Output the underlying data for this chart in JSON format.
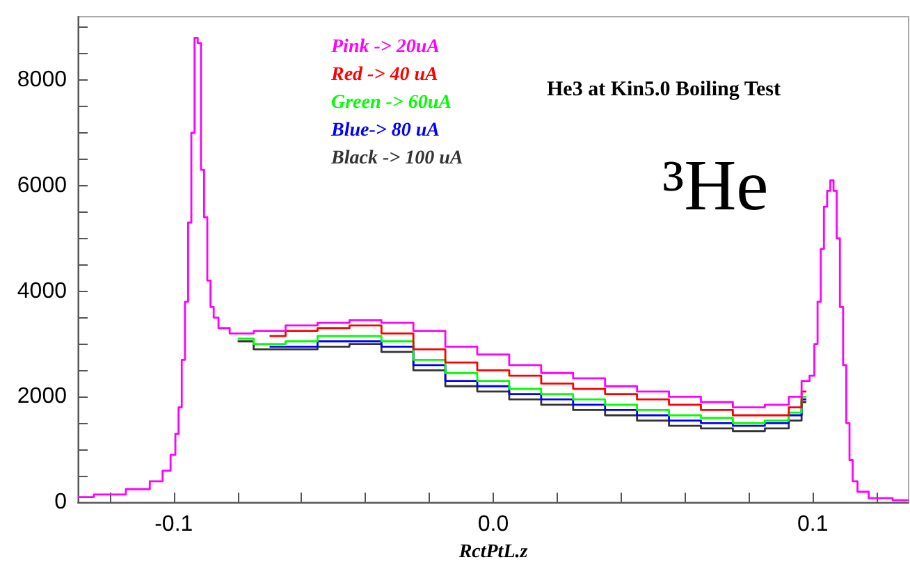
{
  "chart_data": {
    "type": "step",
    "title": "He3 at Kin5.0 Boiling Test",
    "xlabel": "RctPtL.z",
    "annotations": [
      "³He"
    ],
    "x": [
      -0.13,
      -0.12,
      -0.11,
      -0.105,
      -0.102,
      -0.1,
      -0.099,
      -0.098,
      -0.097,
      -0.096,
      -0.095,
      -0.094,
      -0.093,
      -0.092,
      -0.091,
      -0.09,
      -0.089,
      -0.088,
      -0.087,
      -0.085,
      -0.08,
      -0.07,
      -0.06,
      -0.05,
      -0.04,
      -0.03,
      -0.02,
      -0.01,
      0,
      0.01,
      0.02,
      0.03,
      0.04,
      0.05,
      0.06,
      0.07,
      0.08,
      0.09,
      0.095,
      0.098,
      0.1,
      0.101,
      0.102,
      0.103,
      0.104,
      0.105,
      0.106,
      0.107,
      0.108,
      0.109,
      0.11,
      0.111,
      0.112,
      0.113,
      0.115,
      0.12,
      0.13
    ],
    "series": [
      {
        "name": "Black -> 100 uA",
        "color": "#333333",
        "x": [
          -0.08,
          -0.07,
          -0.06,
          -0.05,
          -0.04,
          -0.03,
          -0.02,
          -0.01,
          0,
          0.01,
          0.02,
          0.03,
          0.04,
          0.05,
          0.06,
          0.07,
          0.08,
          0.09,
          0.095,
          0.098
        ],
        "values": [
          3050,
          2900,
          2900,
          2950,
          3000,
          2850,
          2500,
          2200,
          2100,
          1950,
          1850,
          1750,
          1650,
          1550,
          1450,
          1400,
          1350,
          1400,
          1550,
          1900
        ]
      },
      {
        "name": "Blue-> 80 uA",
        "color": "#0000ff",
        "x": [
          -0.07,
          -0.06,
          -0.05,
          -0.04,
          -0.03,
          -0.02,
          -0.01,
          0,
          0.01,
          0.02,
          0.03,
          0.04,
          0.05,
          0.06,
          0.07,
          0.08,
          0.09,
          0.095,
          0.098
        ],
        "values": [
          2950,
          2950,
          3050,
          3050,
          2950,
          2600,
          2300,
          2200,
          2050,
          1950,
          1850,
          1750,
          1650,
          1550,
          1500,
          1450,
          1500,
          1650,
          1950
        ]
      },
      {
        "name": "Green -> 60uA",
        "color": "#00ff00",
        "x": [
          -0.08,
          -0.07,
          -0.06,
          -0.05,
          -0.04,
          -0.03,
          -0.02,
          -0.01,
          0,
          0.01,
          0.02,
          0.03,
          0.04,
          0.05,
          0.06,
          0.07,
          0.08,
          0.09,
          0.095,
          0.098
        ],
        "values": [
          3100,
          3000,
          3050,
          3150,
          3150,
          3050,
          2700,
          2450,
          2300,
          2150,
          2050,
          1950,
          1850,
          1750,
          1650,
          1600,
          1500,
          1550,
          1700,
          2000
        ]
      },
      {
        "name": "Red -> 40 uA",
        "color": "#ff0000",
        "x": [
          -0.07,
          -0.06,
          -0.05,
          -0.04,
          -0.03,
          -0.02,
          -0.01,
          0,
          0.01,
          0.02,
          0.03,
          0.04,
          0.05,
          0.06,
          0.07,
          0.08,
          0.09,
          0.095,
          0.098
        ],
        "values": [
          3150,
          3250,
          3300,
          3350,
          3200,
          2900,
          2650,
          2500,
          2400,
          2250,
          2150,
          2050,
          1950,
          1850,
          1750,
          1650,
          1650,
          1800,
          2100
        ]
      },
      {
        "name": "Pink -> 20uA",
        "color": "#ff00ff",
        "values": [
          100,
          150,
          250,
          400,
          600,
          900,
          1300,
          1800,
          2700,
          3800,
          5300,
          7000,
          8800,
          8700,
          6300,
          5400,
          4200,
          3700,
          3500,
          3300,
          3200,
          3250,
          3350,
          3400,
          3450,
          3400,
          3250,
          2950,
          2800,
          2600,
          2450,
          2350,
          2200,
          2100,
          2000,
          1900,
          1800,
          1850,
          2000,
          2300,
          2400,
          3000,
          3800,
          4800,
          5600,
          5900,
          6100,
          5900,
          5000,
          3700,
          2600,
          1500,
          800,
          400,
          200,
          80,
          40
        ]
      }
    ],
    "legend": "top left",
    "grid": false,
    "marker": "none",
    "line_style": "solid",
    "xlim": [
      -0.13,
      0.13
    ],
    "xticks": [
      {
        "value": -0.12,
        "label": null
      },
      {
        "value": -0.1,
        "label": "-0.1"
      },
      {
        "value": -0.08,
        "label": null
      },
      {
        "value": -0.06,
        "label": null
      },
      {
        "value": -0.04,
        "label": null
      },
      {
        "value": -0.02,
        "label": null
      },
      {
        "value": 0,
        "label": "0.0"
      },
      {
        "value": 0.02,
        "label": null
      },
      {
        "value": 0.04,
        "label": null
      },
      {
        "value": 0.06,
        "label": null
      },
      {
        "value": 0.08,
        "label": null
      },
      {
        "value": 0.1,
        "label": "0.1"
      },
      {
        "value": 0.12,
        "label": null
      }
    ],
    "ylim": [
      0,
      9200
    ],
    "yticks": [
      0,
      {
        "value": 500,
        "label": null
      },
      {
        "value": 1000,
        "label": null
      },
      {
        "value": 1500,
        "label": null
      },
      2000,
      {
        "value": 2500,
        "label": null
      },
      {
        "value": 3000,
        "label": null
      },
      {
        "value": 3500,
        "label": null
      },
      4000,
      {
        "value": 4500,
        "label": null
      },
      {
        "value": 5000,
        "label": null
      },
      {
        "value": 5500,
        "label": null
      },
      6000,
      {
        "value": 6500,
        "label": null
      },
      {
        "value": 7000,
        "label": null
      },
      {
        "value": 7500,
        "label": null
      },
      8000,
      {
        "value": 8500,
        "label": null
      },
      {
        "value": 9000,
        "label": null
      }
    ]
  }
}
